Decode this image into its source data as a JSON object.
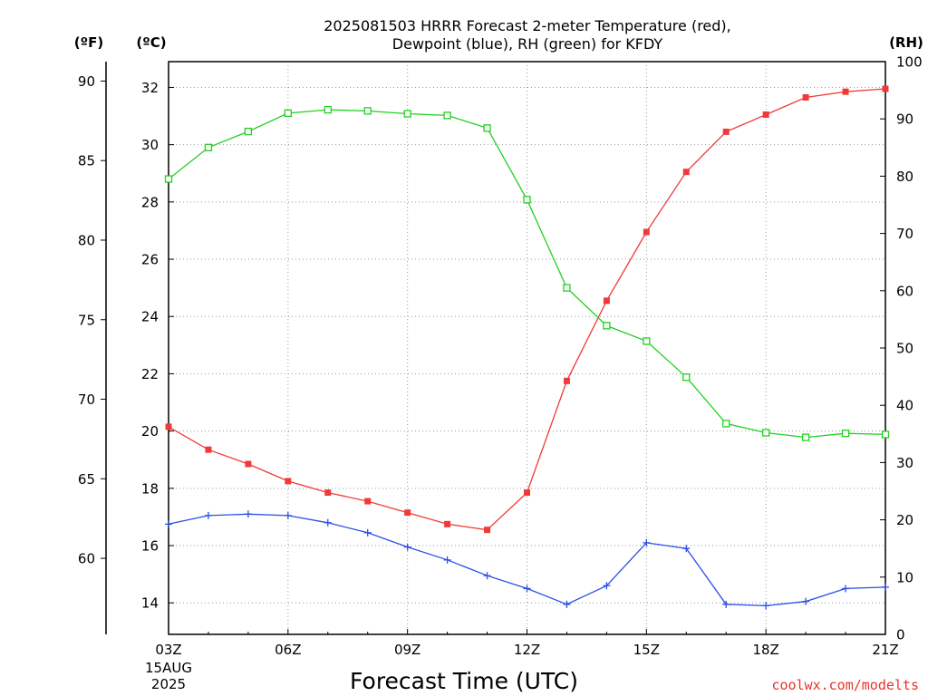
{
  "chart_data": {
    "type": "line",
    "title_line1": "2025081503 HRRR Forecast 2-meter Temperature (red),",
    "title_line2": "Dewpoint (blue), RH (green) for KFDY",
    "xlabel": "Forecast Time (UTC)",
    "units": {
      "fahrenheit": "(ºF)",
      "celsius": "(ºC)",
      "rh": "(RH)"
    },
    "x_hours": [
      3,
      4,
      5,
      6,
      7,
      8,
      9,
      10,
      11,
      12,
      13,
      14,
      15,
      16,
      17,
      18,
      19,
      20,
      21
    ],
    "x_ticks": [
      "03Z",
      "06Z",
      "09Z",
      "12Z",
      "15Z",
      "18Z",
      "21Z"
    ],
    "x_tick_hours": [
      3,
      6,
      9,
      12,
      15,
      18,
      21
    ],
    "date_label_day": "15AUG",
    "date_label_year": "2025",
    "celsius_ticks": [
      "14",
      "16",
      "18",
      "20",
      "22",
      "24",
      "26",
      "28",
      "30",
      "32"
    ],
    "celsius_tick_values": [
      14,
      16,
      18,
      20,
      22,
      24,
      26,
      28,
      30,
      32
    ],
    "ylim_celsius": [
      12.9,
      32.9
    ],
    "fahrenheit_ticks": [
      "60",
      "65",
      "70",
      "75",
      "80",
      "85",
      "90"
    ],
    "fahrenheit_tick_values": [
      60,
      65,
      70,
      75,
      80,
      85,
      90
    ],
    "rh_ticks": [
      "0",
      "10",
      "20",
      "30",
      "40",
      "50",
      "60",
      "70",
      "80",
      "90",
      "100"
    ],
    "rh_tick_values": [
      0,
      10,
      20,
      30,
      40,
      50,
      60,
      70,
      80,
      90,
      100
    ],
    "ylim_rh": [
      0,
      100
    ],
    "grid": true,
    "series": [
      {
        "name": "Temperature",
        "color": "#f03a3a",
        "marker": "filled-square",
        "axis": "celsius",
        "values": [
          20.15,
          19.35,
          18.85,
          18.25,
          17.85,
          17.55,
          17.15,
          16.75,
          16.55,
          17.85,
          21.75,
          24.55,
          26.95,
          29.05,
          30.45,
          31.05,
          31.65,
          31.85,
          31.95
        ]
      },
      {
        "name": "Dewpoint",
        "color": "#2b4ee6",
        "marker": "plus",
        "axis": "celsius",
        "values": [
          16.75,
          17.05,
          17.1,
          17.05,
          16.8,
          16.45,
          15.95,
          15.5,
          14.95,
          14.5,
          13.95,
          14.6,
          16.1,
          15.9,
          13.95,
          13.9,
          14.05,
          14.5,
          14.55
        ]
      },
      {
        "name": "RH",
        "color": "#22d022",
        "marker": "open-square",
        "axis": "rh",
        "values": [
          79.5,
          85,
          87.8,
          91,
          91.6,
          91.4,
          90.9,
          90.6,
          88.4,
          75.9,
          60.5,
          53.9,
          51.2,
          44.9,
          36.8,
          35.2,
          34.4,
          35.1,
          34.9
        ]
      }
    ],
    "credit": "coolwx.com/modelts"
  }
}
